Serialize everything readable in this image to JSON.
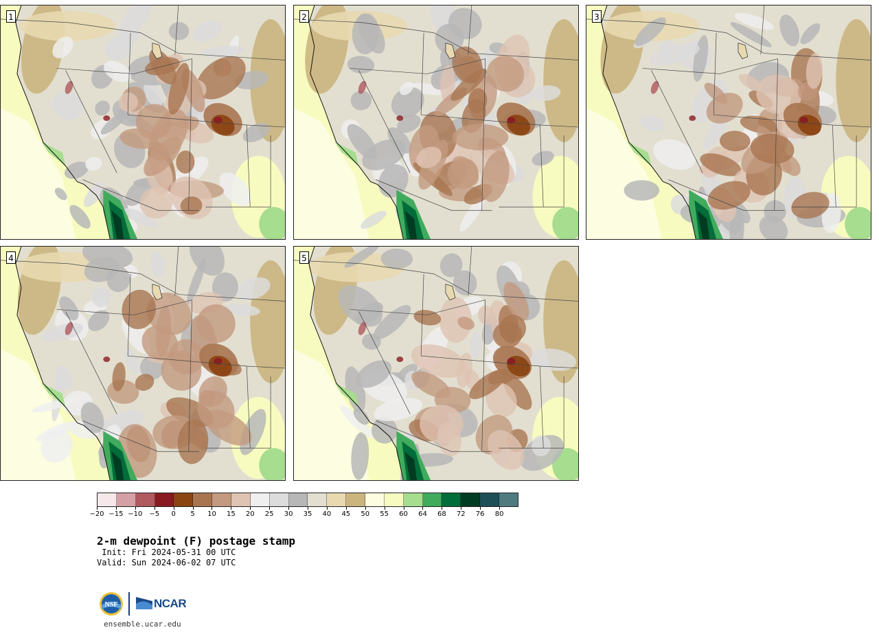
{
  "panels": [
    {
      "number": "1",
      "variant": 0
    },
    {
      "number": "2",
      "variant": 1
    },
    {
      "number": "3",
      "variant": 2
    },
    {
      "number": "4",
      "variant": 3
    },
    {
      "number": "5",
      "variant": 4
    }
  ],
  "colorbar": {
    "colors": [
      "#f6e8ea",
      "#d4a0a5",
      "#b0595f",
      "#8a1a22",
      "#8b4513",
      "#a97551",
      "#c39a80",
      "#dfc3b3",
      "#efefef",
      "#dcdcdc",
      "#b7b7b7",
      "#e2dfd0",
      "#e8d9b0",
      "#cbb57e",
      "#fdfde2",
      "#f8fbbf",
      "#a6dd8e",
      "#41ab5d",
      "#006d3a",
      "#003c22",
      "#1e4f56",
      "#4f7b80"
    ],
    "tick_labels": [
      "−20",
      "−15",
      "−10",
      "−5",
      "0",
      "5",
      "10",
      "15",
      "20",
      "25",
      "30",
      "35",
      "40",
      "45",
      "50",
      "55",
      "60",
      "64",
      "68",
      "72",
      "76",
      "80"
    ]
  },
  "title": "2-m dewpoint (F) postage stamp",
  "init": " Init: Fri 2024-05-31 00 UTC",
  "valid": "Valid: Sun 2024-06-02 07 UTC",
  "logos": {
    "nsf": "NSF",
    "ncar": "NCAR"
  },
  "site": "ensemble.ucar.edu"
}
